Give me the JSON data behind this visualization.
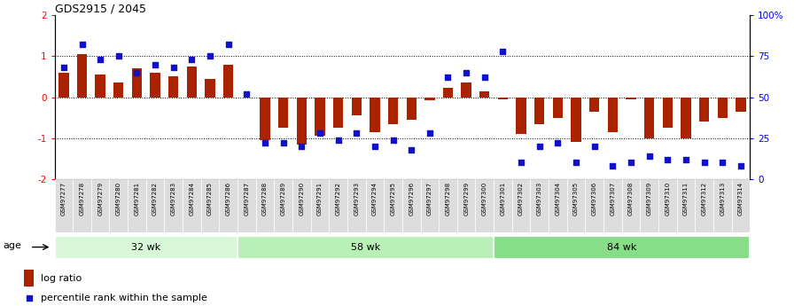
{
  "title": "GDS2915 / 2045",
  "samples": [
    "GSM97277",
    "GSM97278",
    "GSM97279",
    "GSM97280",
    "GSM97281",
    "GSM97282",
    "GSM97283",
    "GSM97284",
    "GSM97285",
    "GSM97286",
    "GSM97287",
    "GSM97288",
    "GSM97289",
    "GSM97290",
    "GSM97291",
    "GSM97292",
    "GSM97293",
    "GSM97294",
    "GSM97295",
    "GSM97296",
    "GSM97297",
    "GSM97298",
    "GSM97299",
    "GSM97300",
    "GSM97301",
    "GSM97302",
    "GSM97303",
    "GSM97304",
    "GSM97305",
    "GSM97306",
    "GSM97307",
    "GSM97308",
    "GSM97309",
    "GSM97310",
    "GSM97311",
    "GSM97312",
    "GSM97313",
    "GSM97314"
  ],
  "log_ratio": [
    0.6,
    1.05,
    0.55,
    0.35,
    0.7,
    0.6,
    0.5,
    0.75,
    0.45,
    0.8,
    0.0,
    -1.05,
    -0.75,
    -1.15,
    -0.95,
    -0.75,
    -0.45,
    -0.85,
    -0.65,
    -0.55,
    -0.08,
    0.22,
    0.35,
    0.15,
    -0.05,
    -0.9,
    -0.65,
    -0.5,
    -1.1,
    -0.35,
    -0.85,
    -0.05,
    -1.0,
    -0.75,
    -1.0,
    -0.6,
    -0.5,
    -0.35
  ],
  "percentile": [
    68,
    82,
    73,
    75,
    65,
    70,
    68,
    73,
    75,
    82,
    52,
    22,
    22,
    20,
    28,
    24,
    28,
    20,
    24,
    18,
    28,
    62,
    65,
    62,
    78,
    10,
    20,
    22,
    10,
    20,
    8,
    10,
    14,
    12,
    12,
    10,
    10,
    8
  ],
  "group_labels": [
    "32 wk",
    "58 wk",
    "84 wk"
  ],
  "group_starts": [
    0,
    10,
    24
  ],
  "group_ends": [
    10,
    24,
    38
  ],
  "group_colors": [
    "#d8f8d8",
    "#b8f0b8",
    "#88dd88"
  ],
  "bar_color": "#aa2200",
  "scatter_color": "#1111cc",
  "ylim_left": [
    -2,
    2
  ],
  "ylim_right": [
    0,
    100
  ],
  "yticks_left": [
    -2,
    -1,
    0,
    1,
    2
  ],
  "yticks_right": [
    0,
    25,
    50,
    75,
    100
  ],
  "ytick_labels_right": [
    "0",
    "25",
    "50",
    "75",
    "100%"
  ],
  "hlines": [
    1.0,
    0.0,
    -1.0
  ],
  "legend_bar_label": "log ratio",
  "legend_scatter_label": "percentile rank within the sample",
  "age_label": "age"
}
